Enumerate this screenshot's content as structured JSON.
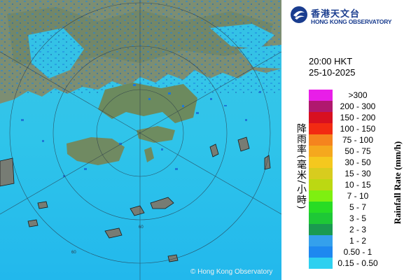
{
  "header": {
    "logo_chinese": "香港天文台",
    "logo_english": "HONG KONG OBSERVATORY"
  },
  "timestamp": {
    "time": "20:00 HKT",
    "date": "25-10-2025"
  },
  "map": {
    "copyright": "© Hong Kong Observatory",
    "range_ring_labels": [
      "60",
      "60"
    ]
  },
  "legend": {
    "title_english": "Rainfall Rate (mm/h)",
    "title_chinese": "降雨率(毫米/小時)",
    "items": [
      {
        "label": ">300",
        "color": "#e81ee8"
      },
      {
        "label": "200 - 300",
        "color": "#b0186e"
      },
      {
        "label": "150 - 200",
        "color": "#d81020"
      },
      {
        "label": "100 - 150",
        "color": "#f22a12"
      },
      {
        "label": "75 - 100",
        "color": "#f5841e"
      },
      {
        "label": "50 - 75",
        "color": "#f5a81e"
      },
      {
        "label": "30 - 50",
        "color": "#f5c81e"
      },
      {
        "label": "15 - 30",
        "color": "#d8cc1e"
      },
      {
        "label": "10 - 15",
        "color": "#bcd812"
      },
      {
        "label": "7 - 10",
        "color": "#7ef010"
      },
      {
        "label": "5 - 7",
        "color": "#28dc24"
      },
      {
        "label": "3 - 5",
        "color": "#1ec836"
      },
      {
        "label": "2 - 3",
        "color": "#1a9a50"
      },
      {
        "label": "1 - 2",
        "color": "#34a0ec"
      },
      {
        "label": "0.50 - 1",
        "color": "#1e88f0"
      },
      {
        "label": "0.15 - 0.50",
        "color": "#2ed0f0"
      }
    ]
  }
}
